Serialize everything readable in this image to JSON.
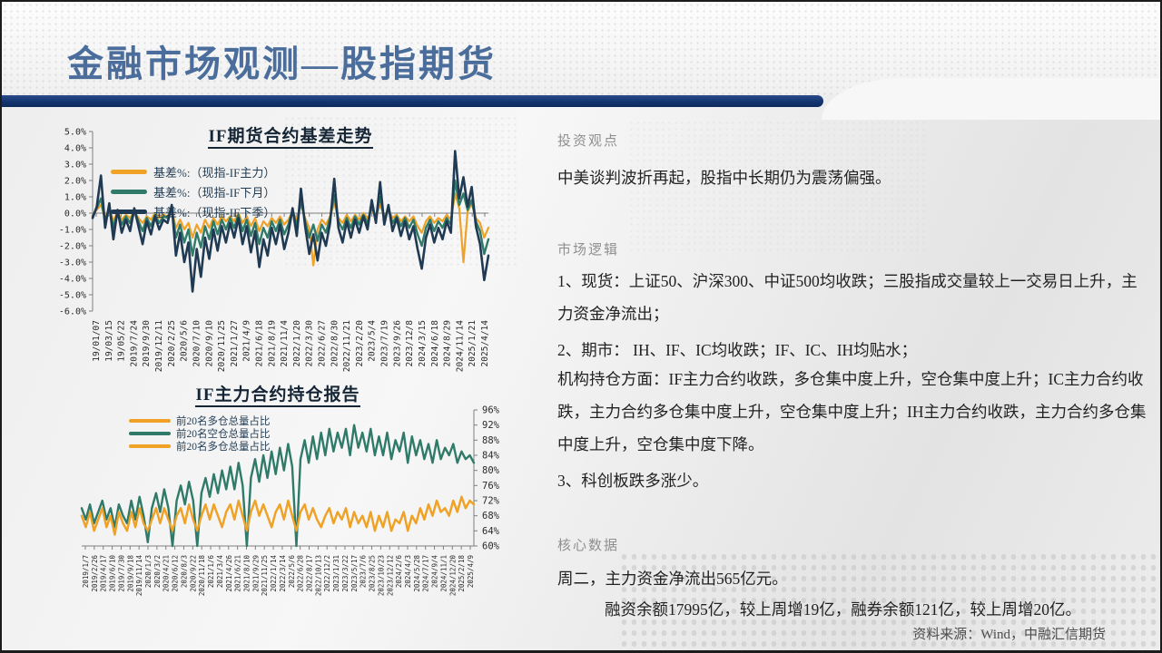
{
  "slide": {
    "title": "金融市场观测—股指期货"
  },
  "colors": {
    "orange": "#EFA226",
    "teal": "#2F7A68",
    "navy": "#1F3A52",
    "title_blue": "#4A6D9C",
    "bar_navy": "#14356F",
    "heading_gray": "#8F8F8F"
  },
  "right_panel": {
    "sections": [
      {
        "heading": "投资观点",
        "paragraphs": [
          "中美谈判波折再起，股指中长期仍为震荡偏强。"
        ]
      },
      {
        "heading": "市场逻辑",
        "paragraphs": [
          "1、现货：上证50、沪深300、中证500均收跌；三股指成交量较上一交易日上升，主力资金净流出；",
          "2、期市： IH、IF、IC均收跌；IF、IC、IH均贴水；",
          "机构持仓方面：IF主力合约收跌，多仓集中度上升，空仓集中度上升；IC主力合约收跌，主力合约多仓集中度上升，空仓集中度上升；IH主力合约收跌，主力合约多仓集中度上升，空仓集中度下降。",
          "3、科创板跌多涨少。"
        ]
      },
      {
        "heading": "核心数据",
        "paragraphs": [
          "周二，主力资金净流出565亿元。",
          "融资余额17995亿，较上周增19亿，融券余额121亿，较上周增20亿。"
        ]
      }
    ],
    "source": "资料来源：Wind，中融汇信期货"
  },
  "chart_data": [
    {
      "type": "line",
      "title": "IF期货合约基差走势",
      "ylim": [
        -6,
        5
      ],
      "ytick_labels": [
        "5.0%",
        "4.0%",
        "3.0%",
        "2.0%",
        "1.0%",
        "0.0%",
        "-1.0%",
        "-2.0%",
        "-3.0%",
        "-4.0%",
        "-5.0%",
        "-6.0%"
      ],
      "ytick_values": [
        5,
        4,
        3,
        2,
        1,
        0,
        -1,
        -2,
        -3,
        -4,
        -5,
        -6
      ],
      "x_labels": [
        "19/01/07",
        "19/03/15",
        "19/05/22",
        "2019/7/24",
        "2019/9/30",
        "2019/12/11",
        "2020/2/25",
        "2020/5/6",
        "2020/7/10",
        "2020/9/10",
        "2020/11/25",
        "2021/1/27",
        "2021/4/9",
        "2021/6/18",
        "2021/8/19",
        "2021/11/4",
        "2022/1/20",
        "2022/3/30",
        "2022/6/27",
        "2022/8/30",
        "2022/11/21",
        "2023/2/20",
        "2023/5/4",
        "2023/7/19",
        "2023/9/26",
        "2023/12/8",
        "2024/3/15",
        "2024/6/18",
        "2024/8/29",
        "2024/11/14",
        "2025/1/21",
        "2025/4/14"
      ],
      "legend_position": "upper-left",
      "grid": false,
      "series": [
        {
          "name": "基差%:（现指-IF主力）",
          "color": "orange",
          "values": [
            -0.1,
            0.2,
            0.5,
            -0.3,
            0.3,
            -0.5,
            0.1,
            -0.4,
            -0.1,
            -0.3,
            0.1,
            -0.3,
            -0.6,
            -0.2,
            -0.4,
            0.0,
            -0.3,
            -0.1,
            -0.2,
            0.2,
            -0.9,
            -0.4,
            -1.0,
            -0.6,
            -1.5,
            -0.7,
            -1.2,
            -0.4,
            -0.9,
            -0.3,
            -0.7,
            -0.2,
            -0.5,
            -0.2,
            -0.5,
            0.0,
            -0.6,
            -0.2,
            -0.8,
            -0.3,
            -1.1,
            -0.5,
            -0.8,
            -0.3,
            -0.6,
            -0.2,
            -0.7,
            -0.4,
            0.1,
            -0.4,
            0.5,
            -0.3,
            -0.9,
            -3.2,
            -1.0,
            -0.4,
            -0.7,
            -0.2,
            0.6,
            -0.3,
            -0.6,
            -0.1,
            -0.5,
            -0.1,
            -0.4,
            0.0,
            -0.3,
            0.2,
            -0.2,
            0.5,
            -0.2,
            0.2,
            -0.3,
            -0.1,
            -0.5,
            -0.2,
            -0.5,
            -0.2,
            -0.8,
            -1.2,
            -0.5,
            -0.2,
            -0.6,
            -0.3,
            -0.5,
            -0.1,
            -0.4,
            1.2,
            0.3,
            -3.0,
            0.1,
            0.6,
            -0.3,
            -0.6,
            -1.5,
            -0.9
          ]
        },
        {
          "name": "基差%:（现指-IF下月）",
          "color": "teal",
          "values": [
            -0.2,
            0.3,
            0.9,
            -0.5,
            0.4,
            -0.9,
            0.1,
            -0.7,
            -0.2,
            -0.6,
            0.2,
            -0.5,
            -1.1,
            -0.3,
            -0.8,
            -0.1,
            -0.6,
            -0.2,
            -0.3,
            0.3,
            -1.5,
            -0.7,
            -1.8,
            -1.0,
            -2.6,
            -1.2,
            -2.1,
            -0.8,
            -1.6,
            -0.5,
            -1.3,
            -0.4,
            -1.0,
            -0.3,
            -0.9,
            -0.1,
            -1.1,
            -0.4,
            -1.4,
            -0.6,
            -1.9,
            -0.9,
            -1.5,
            -0.5,
            -1.1,
            -0.4,
            -1.3,
            -0.7,
            0.2,
            -0.8,
            0.8,
            -0.5,
            -1.5,
            -0.7,
            -1.7,
            -0.7,
            -1.2,
            -0.3,
            1.1,
            -0.5,
            -1.0,
            -0.3,
            -0.9,
            -0.2,
            -0.7,
            -0.1,
            -0.6,
            0.4,
            -0.3,
            1.0,
            -0.4,
            0.3,
            -0.6,
            -0.2,
            -0.8,
            -0.3,
            -0.9,
            -0.4,
            -1.3,
            -2.0,
            -0.9,
            -0.4,
            -1.1,
            -0.5,
            -0.9,
            -0.3,
            -0.7,
            2.0,
            0.5,
            1.2,
            0.2,
            0.8,
            -0.5,
            -1.1,
            -2.5,
            -1.6
          ]
        },
        {
          "name": "基差%:（现指-IF下季）",
          "color": "navy",
          "values": [
            -0.3,
            0.4,
            2.3,
            -0.9,
            0.6,
            -1.6,
            0.2,
            -1.2,
            -0.4,
            -1.1,
            0.3,
            -0.8,
            -1.9,
            -0.5,
            -1.3,
            -0.2,
            -1.0,
            -0.4,
            -0.6,
            0.5,
            -2.6,
            -1.2,
            -3.0,
            -1.8,
            -4.8,
            -2.2,
            -3.9,
            -1.5,
            -2.8,
            -1.0,
            -2.3,
            -0.8,
            -1.8,
            -0.6,
            -1.5,
            -0.3,
            -1.9,
            -0.8,
            -2.4,
            -1.1,
            -3.3,
            -1.6,
            -2.6,
            -0.9,
            -1.9,
            -0.7,
            -2.2,
            -1.2,
            0.3,
            -1.4,
            1.5,
            -0.8,
            -2.5,
            -1.3,
            -2.9,
            -1.2,
            -2.0,
            -0.6,
            2.1,
            -0.9,
            -1.8,
            -0.5,
            -1.5,
            -0.4,
            -1.2,
            -0.2,
            -1.0,
            0.8,
            -0.6,
            1.9,
            -0.7,
            0.5,
            -1.1,
            -0.3,
            -1.4,
            -0.5,
            -1.6,
            -0.8,
            -2.2,
            -3.4,
            -1.5,
            -0.7,
            -1.8,
            -0.9,
            -1.6,
            -0.5,
            -1.2,
            3.8,
            0.9,
            2.2,
            0.4,
            1.6,
            -0.8,
            -1.9,
            -4.1,
            -2.6
          ]
        }
      ]
    },
    {
      "type": "line",
      "title": "IF主力合约持仓报告",
      "ylim": [
        60,
        96
      ],
      "ytick_labels": [
        "96%",
        "92%",
        "88%",
        "84%",
        "80%",
        "76%",
        "72%",
        "68%",
        "64%",
        "60%"
      ],
      "ytick_values": [
        96,
        92,
        88,
        84,
        80,
        76,
        72,
        68,
        64,
        60
      ],
      "x_labels": [
        "2019/1/7",
        "2019/2/26",
        "2019/4/17",
        "2019/6/10",
        "2019/7/30",
        "2019/9/18",
        "2019/11/14",
        "2020/1/3",
        "2020/3/2",
        "2020/4/21",
        "2020/6/12",
        "2020/8/3",
        "2020/9/22",
        "2020/11/18",
        "2021/1/6",
        "2021/3/4",
        "2021/4/26",
        "2021/6/21",
        "2021/8/10",
        "2021/9/29",
        "2021/11/25",
        "2022/1/14",
        "2022/3/14",
        "2022/5/6",
        "2022/6/28",
        "2022/8/17",
        "2022/10/13",
        "2022/12/2",
        "2023/1/31",
        "2023/3/22",
        "2023/5/17",
        "2023/7/6",
        "2023/8/25",
        "2023/10/23",
        "2023/12/12",
        "2024/2/6",
        "2024/4/3",
        "2024/5/28",
        "2024/7/17",
        "2024/9/4",
        "2024/11/1",
        "2024/12/20",
        "2025/2/18",
        "2025/4/9"
      ],
      "legend_position": "upper-left",
      "grid": false,
      "y_axis_side": "right",
      "series": [
        {
          "name": "前20名多仓总量占比",
          "color": "orange",
          "values": [
            68,
            65,
            69,
            64,
            67,
            70,
            65,
            68,
            63,
            69,
            66,
            64,
            69,
            65,
            70,
            66,
            64,
            67,
            70,
            66,
            70,
            67,
            64,
            68,
            70,
            66,
            71,
            67,
            64,
            68,
            71,
            67,
            71,
            68,
            65,
            69,
            71,
            67,
            72,
            68,
            64,
            69,
            72,
            68,
            71,
            68,
            65,
            69,
            71,
            67,
            72,
            68,
            64,
            69,
            71,
            67,
            70,
            67,
            65,
            68,
            70,
            66,
            69,
            67,
            70,
            65,
            69,
            66,
            68,
            65,
            69,
            64,
            68,
            65,
            69,
            64,
            67,
            66,
            69,
            64,
            68,
            66,
            70,
            67,
            71,
            68,
            72,
            69,
            70,
            68,
            72,
            69,
            73,
            70,
            72,
            71
          ]
        },
        {
          "name": "前20名空仓总量占比",
          "color": "teal",
          "values": [
            70,
            67,
            71,
            66,
            69,
            72,
            67,
            70,
            65,
            71,
            68,
            66,
            72,
            67,
            73,
            68,
            61,
            70,
            74,
            69,
            75,
            70,
            60,
            72,
            76,
            71,
            77,
            72,
            60,
            74,
            78,
            73,
            79,
            74,
            80,
            75,
            81,
            75,
            82,
            76,
            60,
            78,
            83,
            77,
            84,
            78,
            85,
            79,
            86,
            80,
            87,
            81,
            60,
            83,
            88,
            82,
            89,
            83,
            90,
            84,
            91,
            85,
            90,
            86,
            91,
            84,
            92,
            86,
            90,
            85,
            91,
            84,
            89,
            84,
            90,
            83,
            88,
            85,
            90,
            82,
            89,
            84,
            88,
            83,
            87,
            82,
            88,
            83,
            86,
            84,
            87,
            82,
            85,
            83,
            84,
            82
          ]
        },
        {
          "name": "前20名多仓总量占比",
          "color": "orange",
          "values": [
            68,
            65,
            69,
            64,
            67,
            70,
            65,
            68,
            63,
            69,
            66,
            64,
            69,
            65,
            70,
            66,
            64,
            67,
            70,
            66,
            70,
            67,
            64,
            68,
            70,
            66,
            71,
            67,
            64,
            68,
            71,
            67,
            71,
            68,
            65,
            69,
            71,
            67,
            72,
            68,
            64,
            69,
            72,
            68,
            71,
            68,
            65,
            69,
            71,
            67,
            72,
            68,
            64,
            69,
            71,
            67,
            70,
            67,
            65,
            68,
            70,
            66,
            69,
            67,
            70,
            65,
            69,
            66,
            68,
            65,
            69,
            64,
            68,
            65,
            69,
            64,
            67,
            66,
            69,
            64,
            68,
            66,
            70,
            67,
            71,
            68,
            72,
            69,
            70,
            68,
            72,
            69,
            73,
            70,
            72,
            71
          ]
        }
      ]
    }
  ]
}
